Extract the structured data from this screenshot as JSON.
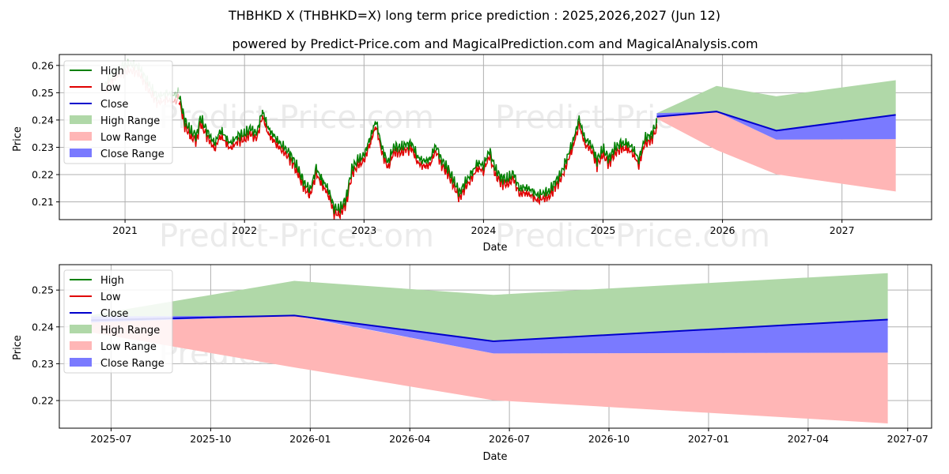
{
  "title": "THBHKD X (THBHKD=X) long term price prediction : 2025,2026,2027 (Jun 12)",
  "subtitle": "powered by Predict-Price.com and MagicalPrediction.com and MagicalAnalysis.com",
  "watermark": "Predict-Price.com",
  "colors": {
    "high": "#008000",
    "low": "#e00000",
    "close": "#0000cc",
    "high_range": "#b0d8a8",
    "low_range": "#ffb6b6",
    "close_range": "#7a7aff"
  },
  "legend": [
    "High",
    "Low",
    "Close",
    "High Range",
    "Low Range",
    "Close Range"
  ],
  "chart_data": [
    {
      "type": "line",
      "xlabel": "Date",
      "ylabel": "Price",
      "xlim": [
        2020.45,
        2027.75
      ],
      "ylim": [
        0.2035,
        0.264
      ],
      "xticks": [
        2021,
        2022,
        2023,
        2024,
        2025,
        2026,
        2027
      ],
      "xtick_labels": [
        "2021",
        "2022",
        "2023",
        "2024",
        "2025",
        "2026",
        "2027"
      ],
      "yticks": [
        0.21,
        0.22,
        0.23,
        0.24,
        0.25,
        0.26
      ],
      "ytick_labels": [
        "0.21",
        "0.22",
        "0.23",
        "0.24",
        "0.25",
        "0.26"
      ],
      "history_faded": {
        "x": [
          2020.83,
          2020.9,
          2020.97,
          2021.05,
          2021.12,
          2021.2,
          2021.27,
          2021.35,
          2021.42,
          2021.45
        ],
        "y": [
          0.2515,
          0.256,
          0.2585,
          0.2595,
          0.258,
          0.252,
          0.2475,
          0.2485,
          0.248,
          0.249
        ]
      },
      "history_close": {
        "x": [
          2021.45,
          2021.5,
          2021.55,
          2021.6,
          2021.63,
          2021.7,
          2021.75,
          2021.8,
          2021.88,
          2021.95,
          2022.0,
          2022.05,
          2022.1,
          2022.15,
          2022.2,
          2022.25,
          2022.3,
          2022.35,
          2022.4,
          2022.45,
          2022.5,
          2022.55,
          2022.6,
          2022.65,
          2022.7,
          2022.75,
          2022.8,
          2022.85,
          2022.9,
          2022.95,
          2023.0,
          2023.05,
          2023.1,
          2023.15,
          2023.2,
          2023.25,
          2023.3,
          2023.35,
          2023.4,
          2023.45,
          2023.5,
          2023.55,
          2023.6,
          2023.65,
          2023.7,
          2023.75,
          2023.8,
          2023.85,
          2023.9,
          2023.95,
          2024.0,
          2024.05,
          2024.1,
          2024.15,
          2024.2,
          2024.25,
          2024.3,
          2024.35,
          2024.4,
          2024.45,
          2024.5,
          2024.55,
          2024.6,
          2024.65,
          2024.7,
          2024.75,
          2024.8,
          2024.85,
          2024.9,
          2024.95,
          2025.0,
          2025.05,
          2025.1,
          2025.15,
          2025.2,
          2025.25,
          2025.3,
          2025.35,
          2025.4,
          2025.45
        ],
        "y": [
          0.249,
          0.239,
          0.235,
          0.2335,
          0.24,
          0.234,
          0.2305,
          0.2355,
          0.2305,
          0.2335,
          0.234,
          0.236,
          0.234,
          0.2425,
          0.236,
          0.233,
          0.2305,
          0.2285,
          0.2255,
          0.221,
          0.216,
          0.2135,
          0.2215,
          0.217,
          0.214,
          0.207,
          0.2065,
          0.2105,
          0.2215,
          0.2245,
          0.226,
          0.2325,
          0.239,
          0.229,
          0.2235,
          0.2295,
          0.229,
          0.23,
          0.2305,
          0.2255,
          0.224,
          0.2245,
          0.23,
          0.2245,
          0.2215,
          0.217,
          0.2125,
          0.2165,
          0.2195,
          0.2235,
          0.2225,
          0.228,
          0.221,
          0.218,
          0.2175,
          0.2195,
          0.214,
          0.2145,
          0.2135,
          0.2115,
          0.2125,
          0.213,
          0.2165,
          0.2195,
          0.2255,
          0.2315,
          0.2395,
          0.232,
          0.2305,
          0.2245,
          0.2285,
          0.225,
          0.229,
          0.2305,
          0.2305,
          0.229,
          0.2245,
          0.2325,
          0.2335,
          0.238
        ]
      },
      "forecast_close": {
        "x": [
          2025.45,
          2025.95,
          2026.45,
          2027.45
        ],
        "y": [
          0.2412,
          0.2431,
          0.2361,
          0.2419
        ]
      },
      "high_range": {
        "x": [
          2025.45,
          2025.95,
          2026.45,
          2027.45
        ],
        "upper": [
          0.2425,
          0.2525,
          0.2487,
          0.2546
        ],
        "lower": [
          0.2412,
          0.2431,
          0.2361,
          0.2419
        ]
      },
      "low_range": {
        "x": [
          2025.45,
          2025.95,
          2026.45,
          2027.45
        ],
        "upper": [
          0.2412,
          0.2431,
          0.2328,
          0.233
        ],
        "lower": [
          0.2405,
          0.229,
          0.2201,
          0.2138
        ]
      },
      "close_range": {
        "x": [
          2025.45,
          2025.95,
          2026.45,
          2027.45
        ],
        "upper": [
          0.2425,
          0.2431,
          0.2361,
          0.2419
        ],
        "lower": [
          0.2412,
          0.2431,
          0.2328,
          0.233
        ]
      }
    },
    {
      "type": "line",
      "xlabel": "Date",
      "ylabel": "Price",
      "xlim": [
        2025.37,
        2027.56
      ],
      "ylim": [
        0.2125,
        0.2569
      ],
      "xticks": [
        2025.5,
        2025.75,
        2026.0,
        2026.25,
        2026.5,
        2026.75,
        2027.0,
        2027.25,
        2027.5
      ],
      "xtick_labels": [
        "2025-07",
        "2025-10",
        "2026-01",
        "2026-04",
        "2026-07",
        "2026-10",
        "2027-01",
        "2027-04",
        "2027-07"
      ],
      "yticks": [
        0.22,
        0.23,
        0.24,
        0.25
      ],
      "ytick_labels": [
        "0.22",
        "0.23",
        "0.24",
        "0.25"
      ],
      "forecast_close": {
        "x": [
          2025.45,
          2025.96,
          2026.46,
          2027.45
        ],
        "y": [
          0.2418,
          0.2431,
          0.2361,
          0.242
        ]
      },
      "high_range": {
        "x": [
          2025.45,
          2025.96,
          2026.46,
          2027.45
        ],
        "upper": [
          0.2432,
          0.2525,
          0.2487,
          0.2546
        ],
        "lower": [
          0.2418,
          0.2431,
          0.2361,
          0.242
        ]
      },
      "low_range": {
        "x": [
          2025.45,
          2025.96,
          2026.46,
          2027.45
        ],
        "upper": [
          0.2412,
          0.243,
          0.2328,
          0.233
        ],
        "lower": [
          0.2385,
          0.229,
          0.2201,
          0.2138
        ]
      },
      "close_range": {
        "x": [
          2025.45,
          2025.96,
          2026.46,
          2027.45
        ],
        "upper": [
          0.2428,
          0.2431,
          0.2361,
          0.242
        ],
        "lower": [
          0.2412,
          0.2431,
          0.2328,
          0.233
        ]
      }
    }
  ]
}
